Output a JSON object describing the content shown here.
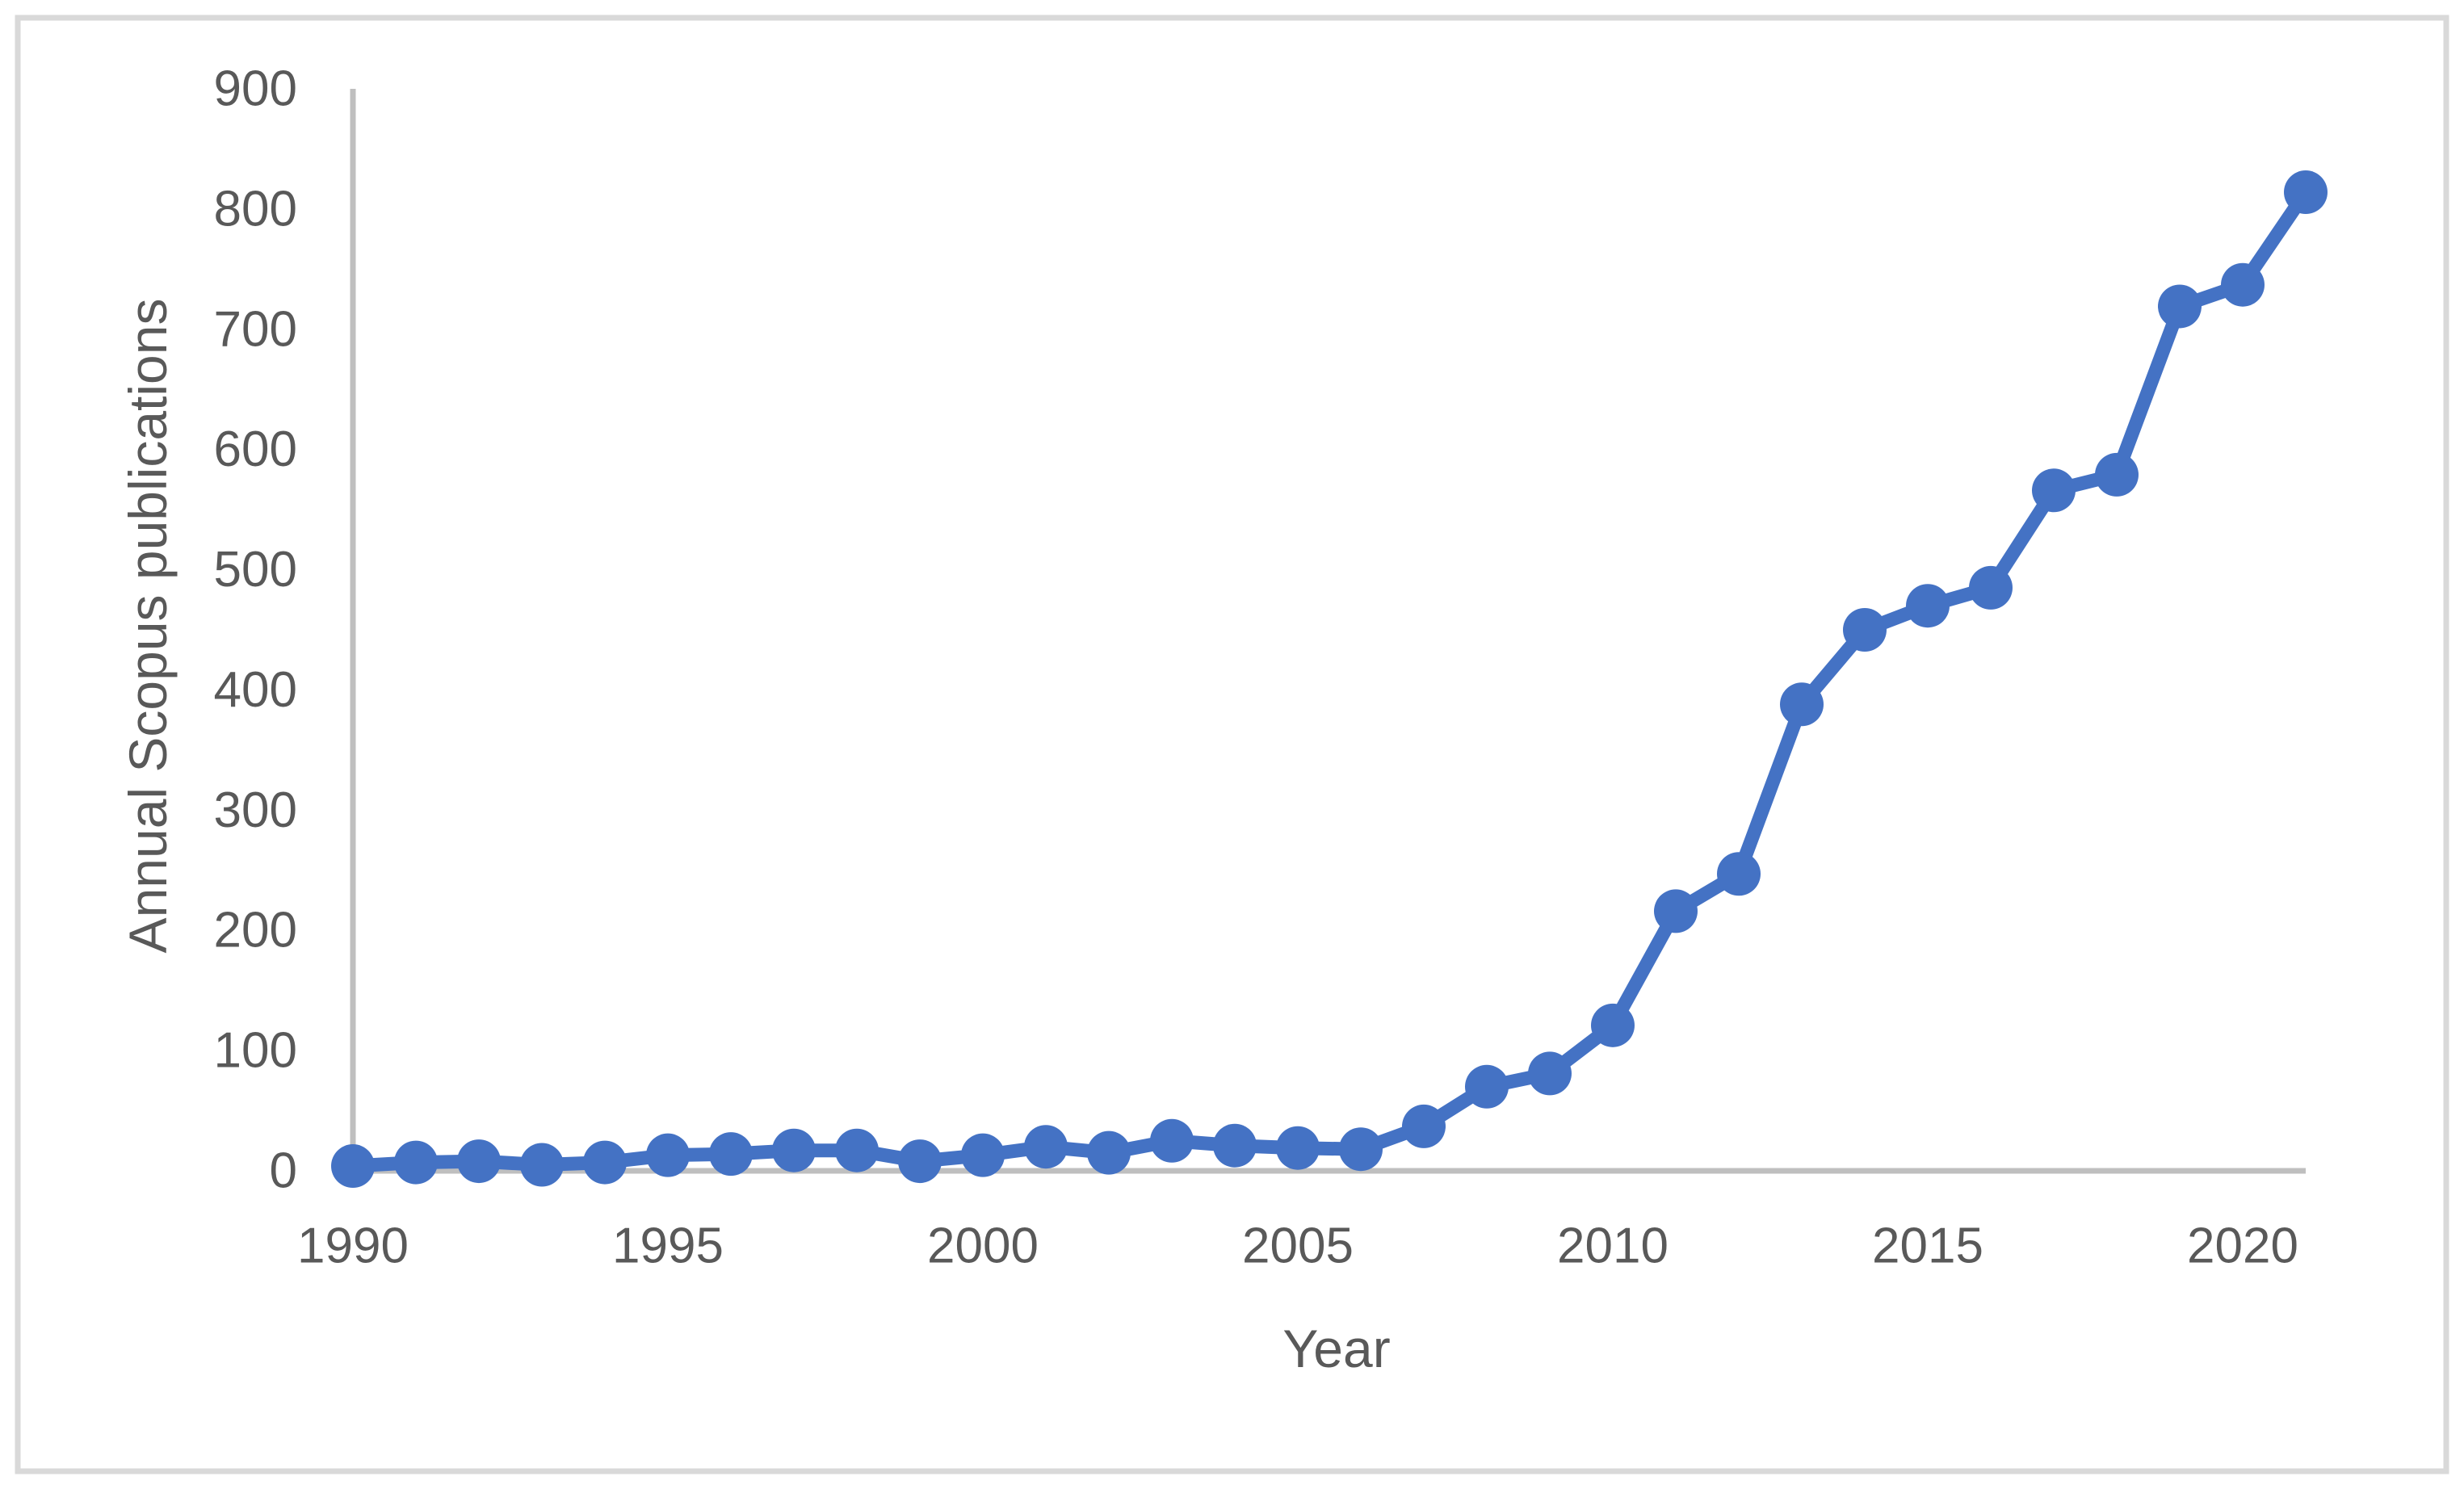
{
  "chart_data": {
    "type": "line",
    "title": "",
    "xlabel": "Year",
    "ylabel": "Annual Scopus publications",
    "x": [
      1990,
      1991,
      1992,
      1993,
      1994,
      1995,
      1996,
      1997,
      1998,
      1999,
      2000,
      2001,
      2002,
      2003,
      2004,
      2005,
      2006,
      2007,
      2008,
      2009,
      2010,
      2011,
      2012,
      2013,
      2014,
      2015,
      2016,
      2017,
      2018,
      2019,
      2020,
      2021
    ],
    "series": [
      {
        "name": "Annual Scopus publications",
        "values": [
          4,
          7,
          8,
          5,
          7,
          13,
          14,
          17,
          17,
          8,
          13,
          20,
          15,
          25,
          21,
          19,
          18,
          37,
          70,
          81,
          121,
          216,
          247,
          388,
          450,
          470,
          485,
          566,
          579,
          719,
          737,
          814
        ]
      }
    ],
    "x_tick_labels": [
      1990,
      1995,
      2000,
      2005,
      2010,
      2015,
      2020
    ],
    "y_tick_labels": [
      0,
      100,
      200,
      300,
      400,
      500,
      600,
      700,
      800,
      900
    ],
    "ylim": [
      0,
      900
    ],
    "xlim": [
      1990,
      2021
    ],
    "grid": false,
    "legend_position": "none",
    "marker": "circle",
    "colors": {
      "line": "#4472C4",
      "marker": "#4472C4",
      "axis_line": "#BFBFBF",
      "text": "#595959",
      "figure_border": "#D9D9D9",
      "background": "#FFFFFF"
    }
  }
}
